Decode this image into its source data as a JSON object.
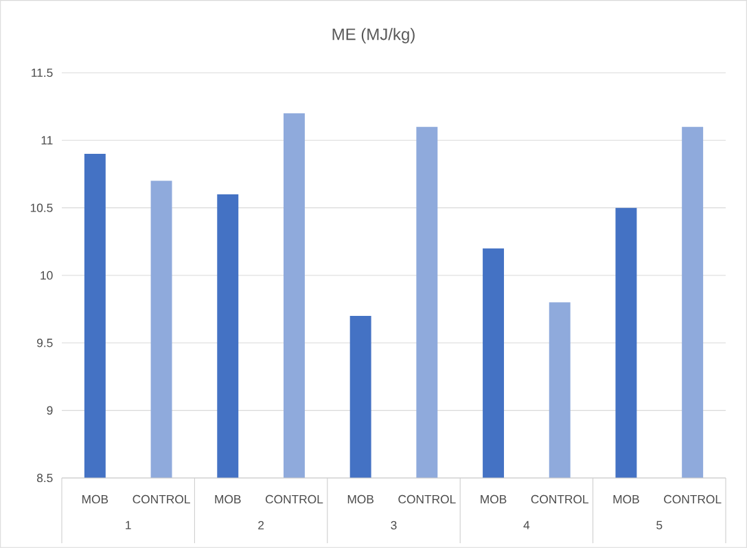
{
  "chart_data": {
    "type": "bar",
    "title": "ME (MJ/kg)",
    "categories": [
      "1",
      "2",
      "3",
      "4",
      "5"
    ],
    "series": [
      {
        "name": "MOB",
        "color": "#4472c4",
        "values": [
          10.9,
          10.6,
          9.7,
          10.2,
          10.5
        ]
      },
      {
        "name": "CONTROL",
        "color": "#8faadc",
        "values": [
          10.7,
          11.2,
          11.1,
          9.8,
          11.1
        ]
      }
    ],
    "ylim": [
      8.5,
      11.5
    ],
    "yticks": [
      8.5,
      9,
      9.5,
      10,
      10.5,
      11,
      11.5
    ],
    "grid": "y"
  }
}
